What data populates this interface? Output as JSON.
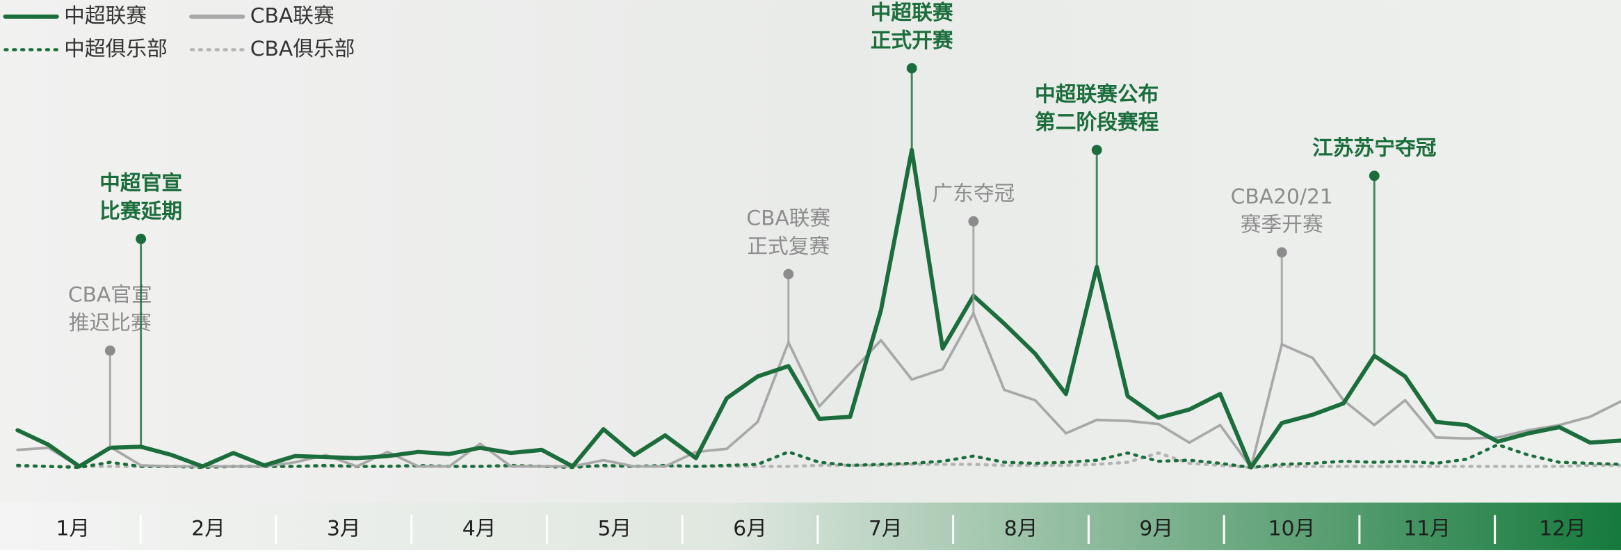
{
  "chart_data": {
    "type": "line",
    "months": [
      "1月",
      "2月",
      "3月",
      "4月",
      "5月",
      "6月",
      "7月",
      "8月",
      "9月",
      "10月",
      "11月",
      "12月"
    ],
    "ylim": [
      0,
      320
    ],
    "series": [
      {
        "name": "中超联赛",
        "color": "#1b6e3c",
        "style": "solid",
        "values": [
          36,
          22,
          1,
          19,
          20,
          12,
          1,
          14,
          2,
          11,
          10,
          9,
          11,
          15,
          13,
          19,
          14,
          17,
          1,
          37,
          12,
          31,
          9,
          67,
          88,
          98,
          47,
          49,
          152,
          307,
          115,
          166,
          139,
          110,
          71,
          194,
          69,
          48,
          56,
          71,
          0,
          43,
          51,
          62,
          108,
          88,
          44,
          41,
          25,
          33,
          39,
          24,
          26
        ]
      },
      {
        "name": "CBA联赛",
        "color": "#a8a8a8",
        "style": "solid",
        "values": [
          17,
          19,
          1,
          20,
          2,
          1,
          1,
          1,
          1,
          5,
          12,
          1,
          15,
          1,
          1,
          23,
          1,
          1,
          1,
          7,
          1,
          1,
          15,
          18,
          44,
          121,
          59,
          91,
          123,
          85,
          95,
          149,
          75,
          65,
          33,
          46,
          45,
          42,
          24,
          41,
          0,
          119,
          106,
          65,
          41,
          65,
          29,
          28,
          29,
          36,
          41,
          49,
          64
        ]
      },
      {
        "name": "中超俱乐部",
        "color": "#1b6e3c",
        "style": "dotted",
        "values": [
          2,
          1,
          0,
          5,
          1,
          1,
          0,
          1,
          1,
          1,
          2,
          1,
          1,
          2,
          1,
          1,
          2,
          1,
          0,
          2,
          1,
          2,
          1,
          2,
          3,
          15,
          5,
          2,
          3,
          4,
          6,
          11,
          5,
          4,
          5,
          7,
          14,
          6,
          7,
          4,
          0,
          3,
          4,
          6,
          5,
          6,
          4,
          8,
          22,
          12,
          5,
          4,
          3
        ]
      },
      {
        "name": "CBA俱乐部",
        "color": "#b4b4b4",
        "style": "dotted",
        "values": [
          1,
          1,
          1,
          1,
          1,
          1,
          1,
          1,
          1,
          1,
          1,
          1,
          1,
          1,
          1,
          1,
          1,
          1,
          1,
          1,
          1,
          1,
          1,
          1,
          1,
          1,
          2,
          2,
          2,
          3,
          3,
          3,
          2,
          2,
          2,
          3,
          5,
          14,
          4,
          2,
          0,
          1,
          1,
          1,
          1,
          1,
          1,
          1,
          1,
          1,
          1,
          2,
          2
        ]
      }
    ],
    "annotations": [
      {
        "lines": [
          "CBA官宣",
          "推迟比赛"
        ],
        "series": 1,
        "index": 3
      },
      {
        "lines": [
          "中超官宣",
          "比赛延期"
        ],
        "series": 0,
        "index": 4
      },
      {
        "lines": [
          "CBA联赛",
          "正式复赛"
        ],
        "series": 1,
        "index": 25
      },
      {
        "lines": [
          "中超联赛",
          "正式开赛"
        ],
        "series": 0,
        "index": 29
      },
      {
        "lines": [
          "广东夺冠"
        ],
        "series": 1,
        "index": 31
      },
      {
        "lines": [
          "中超联赛公布",
          "第二阶段赛程"
        ],
        "series": 0,
        "index": 35
      },
      {
        "lines": [
          "CBA20/21",
          "赛季开赛"
        ],
        "series": 1,
        "index": 41
      },
      {
        "lines": [
          "江苏苏宁夺冠"
        ],
        "series": 0,
        "index": 44
      }
    ]
  }
}
